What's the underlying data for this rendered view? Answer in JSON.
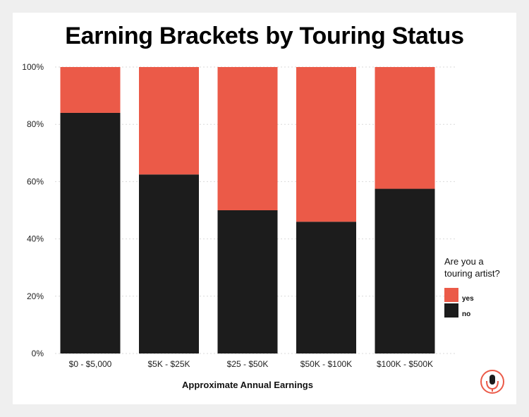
{
  "chart_data": {
    "type": "bar",
    "stacked": true,
    "title": "Earning Brackets by Touring Status",
    "xlabel": "Approximate Annual Earnings",
    "ylabel": "",
    "ylim": [
      0,
      100
    ],
    "yticks": [
      "0%",
      "20%",
      "40%",
      "60%",
      "80%",
      "100%"
    ],
    "grid": true,
    "legend_position": "right",
    "legend_title": "Are you a touring artist?",
    "categories": [
      "$0 - $5,000",
      "$5K - $25K",
      "$25 - $50K",
      "$50K - $100K",
      "$100K - $500K"
    ],
    "series": [
      {
        "name": "no",
        "color": "#1c1c1c",
        "values": [
          84,
          62.5,
          50,
          46,
          57.5
        ]
      },
      {
        "name": "yes",
        "color": "#eb5a48",
        "values": [
          16,
          37.5,
          50,
          54,
          42.5
        ]
      }
    ]
  },
  "logo": {
    "icon": "microphone-icon",
    "color": "#eb5a48"
  }
}
